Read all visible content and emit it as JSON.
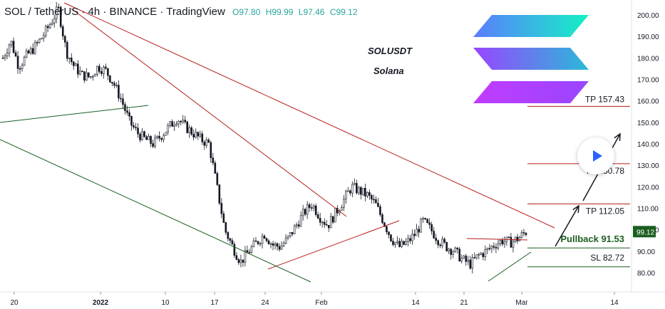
{
  "header": {
    "symbol": "SOL / TetherUS · 4h · BINANCE · TradingView",
    "open": "O97.80",
    "high": "H99.99",
    "low": "L97.46",
    "close": "C99.12"
  },
  "annotations": {
    "ticker": "SOLUSDT",
    "name": "Solana",
    "tp3": "TP 157.43",
    "tp2": "TP 130.78",
    "tp1": "TP 112.05",
    "pullback": "Pullback 91.53",
    "sl": "SL 82.72"
  },
  "colors": {
    "up": "#26a69a",
    "down": "#ef5350",
    "trendline": "#b71c1c",
    "channel": "#1b5e20",
    "price_badge": "#1b5e20",
    "play": "#2962ff"
  },
  "chart_data": {
    "type": "candlestick",
    "interval": "4h",
    "ylim": [
      75,
      205
    ],
    "x_ticks": [
      "20",
      "2022",
      "10",
      "17",
      "24",
      "Feb",
      "14",
      "21",
      "Mar",
      "14"
    ],
    "y_ticks": [
      "80.00",
      "90.00",
      "100.00",
      "110.00",
      "120.00",
      "130.00",
      "140.00",
      "150.00",
      "160.00",
      "170.00",
      "180.00",
      "190.00",
      "200.00"
    ],
    "last_price": "99.12",
    "levels": [
      {
        "label": "TP 157.43",
        "value": 157.43
      },
      {
        "label": "TP 130.78",
        "value": 130.78
      },
      {
        "label": "TP 112.05",
        "value": 112.05
      },
      {
        "label": "Pullback 91.53",
        "value": 91.53
      },
      {
        "label": "SL 82.72",
        "value": 82.72
      }
    ],
    "close_path": [
      [
        0,
        180
      ],
      [
        1,
        188
      ],
      [
        2,
        176
      ],
      [
        3,
        181
      ],
      [
        4,
        185
      ],
      [
        5,
        190
      ],
      [
        6,
        196
      ],
      [
        7,
        203
      ],
      [
        8,
        183
      ],
      [
        9,
        176
      ],
      [
        10,
        172
      ],
      [
        11,
        171
      ],
      [
        12,
        176
      ],
      [
        13,
        174
      ],
      [
        14,
        168
      ],
      [
        15,
        160
      ],
      [
        16,
        150
      ],
      [
        17,
        145
      ],
      [
        18,
        142
      ],
      [
        19,
        140
      ],
      [
        20,
        144
      ],
      [
        21,
        148
      ],
      [
        22,
        152
      ],
      [
        23,
        148
      ],
      [
        24,
        145
      ],
      [
        25,
        142
      ],
      [
        26,
        140
      ],
      [
        27,
        120
      ],
      [
        28,
        100
      ],
      [
        29,
        92
      ],
      [
        30,
        85
      ],
      [
        31,
        90
      ],
      [
        32,
        94
      ],
      [
        33,
        98
      ],
      [
        34,
        93
      ],
      [
        35,
        92
      ],
      [
        36,
        96
      ],
      [
        37,
        102
      ],
      [
        38,
        108
      ],
      [
        39,
        112
      ],
      [
        40,
        106
      ],
      [
        41,
        102
      ],
      [
        42,
        108
      ],
      [
        43,
        114
      ],
      [
        44,
        120
      ],
      [
        45,
        118
      ],
      [
        46,
        116
      ],
      [
        47,
        112
      ],
      [
        48,
        104
      ],
      [
        49,
        96
      ],
      [
        50,
        92
      ],
      [
        51,
        94
      ],
      [
        52,
        98
      ],
      [
        53,
        104
      ],
      [
        54,
        100
      ],
      [
        55,
        95
      ],
      [
        56,
        92
      ],
      [
        57,
        90
      ],
      [
        58,
        86
      ],
      [
        59,
        84
      ],
      [
        60,
        88
      ],
      [
        61,
        90
      ],
      [
        62,
        93
      ],
      [
        63,
        95
      ],
      [
        64,
        94
      ],
      [
        65,
        96
      ],
      [
        66,
        99
      ]
    ]
  }
}
